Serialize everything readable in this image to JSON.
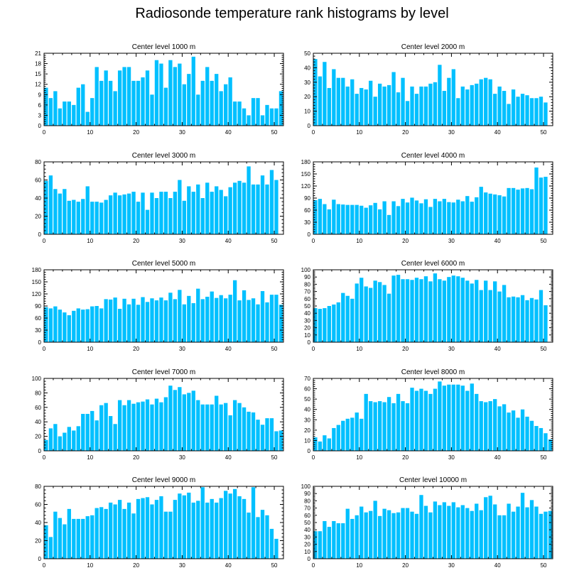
{
  "chart_data": {
    "type": "bar",
    "title": "Radiosonde temperature rank histograms by level",
    "xlim": [
      0,
      52
    ],
    "xticks": [
      0,
      10,
      20,
      30,
      40,
      50
    ],
    "bar_color": "#00c0ff",
    "panels": [
      {
        "title": "Center level 1000 m",
        "ylim": [
          0,
          21
        ],
        "yticks": [
          0,
          3,
          6,
          9,
          12,
          15,
          18,
          21
        ],
        "values": [
          11,
          8,
          10,
          5,
          7,
          7,
          6,
          11,
          12,
          4,
          8,
          17,
          13,
          16,
          13,
          10,
          16,
          17,
          17,
          13,
          13,
          14,
          16,
          9,
          19,
          18,
          11,
          19,
          17,
          18,
          12,
          15,
          20,
          9,
          13,
          17,
          13,
          15,
          10,
          12,
          14,
          7,
          7,
          5,
          3,
          8,
          8,
          3,
          6,
          5,
          5,
          10
        ]
      },
      {
        "title": "Center level 2000 m",
        "ylim": [
          0,
          50
        ],
        "yticks": [
          0,
          10,
          20,
          30,
          40,
          50
        ],
        "values": [
          46,
          34,
          44,
          26,
          39,
          33,
          33,
          27,
          32,
          22,
          26,
          25,
          31,
          20,
          29,
          27,
          28,
          37,
          23,
          33,
          17,
          27,
          22,
          27,
          27,
          29,
          30,
          42,
          24,
          33,
          39,
          19,
          27,
          25,
          28,
          29,
          32,
          33,
          32,
          22,
          27,
          24,
          15,
          25,
          20,
          22,
          21,
          19,
          19,
          20,
          16
        ]
      },
      {
        "title": "Center level 3000 m",
        "ylim": [
          0,
          80
        ],
        "yticks": [
          0,
          20,
          40,
          60,
          80
        ],
        "values": [
          59,
          65,
          50,
          45,
          50,
          37,
          38,
          36,
          39,
          53,
          36,
          36,
          35,
          38,
          43,
          46,
          43,
          44,
          45,
          47,
          36,
          46,
          27,
          46,
          40,
          47,
          47,
          40,
          47,
          60,
          37,
          53,
          47,
          55,
          40,
          57,
          47,
          53,
          49,
          42,
          52,
          57,
          59,
          57,
          75,
          55,
          55,
          65,
          55,
          71,
          60
        ]
      },
      {
        "title": "Center level 4000 m",
        "ylim": [
          0,
          180
        ],
        "yticks": [
          0,
          30,
          60,
          90,
          120,
          150,
          180
        ],
        "values": [
          85,
          88,
          75,
          62,
          86,
          75,
          74,
          73,
          73,
          73,
          71,
          66,
          72,
          78,
          62,
          82,
          48,
          82,
          70,
          88,
          79,
          91,
          84,
          77,
          87,
          68,
          88,
          82,
          88,
          80,
          79,
          86,
          82,
          95,
          81,
          92,
          118,
          104,
          101,
          99,
          97,
          94,
          115,
          115,
          111,
          114,
          115,
          112,
          166,
          141,
          143
        ]
      },
      {
        "title": "Center level 5000 m",
        "ylim": [
          0,
          180
        ],
        "yticks": [
          0,
          30,
          60,
          90,
          120,
          150,
          180
        ],
        "values": [
          87,
          84,
          89,
          81,
          74,
          67,
          78,
          84,
          81,
          82,
          89,
          90,
          84,
          107,
          106,
          111,
          83,
          108,
          94,
          108,
          93,
          112,
          100,
          109,
          104,
          111,
          104,
          123,
          107,
          130,
          94,
          115,
          97,
          133,
          107,
          113,
          126,
          110,
          117,
          109,
          118,
          154,
          104,
          129,
          105,
          109,
          94,
          127,
          99,
          118,
          118,
          93
        ]
      },
      {
        "title": "Center level 6000 m",
        "ylim": [
          0,
          100
        ],
        "yticks": [
          0,
          10,
          20,
          30,
          40,
          50,
          60,
          70,
          80,
          90,
          100
        ],
        "values": [
          47,
          46,
          47,
          50,
          52,
          55,
          68,
          64,
          60,
          81,
          89,
          77,
          75,
          85,
          83,
          79,
          67,
          92,
          93,
          87,
          87,
          86,
          89,
          87,
          91,
          84,
          95,
          87,
          85,
          90,
          92,
          91,
          89,
          85,
          81,
          86,
          72,
          85,
          72,
          84,
          70,
          79,
          62,
          63,
          62,
          65,
          58,
          61,
          59,
          72,
          51
        ]
      },
      {
        "title": "Center level 7000 m",
        "ylim": [
          0,
          100
        ],
        "yticks": [
          0,
          20,
          40,
          60,
          80,
          100
        ],
        "values": [
          15,
          31,
          37,
          20,
          25,
          33,
          28,
          34,
          51,
          51,
          55,
          42,
          63,
          66,
          48,
          37,
          70,
          63,
          70,
          65,
          67,
          68,
          71,
          64,
          72,
          67,
          74,
          90,
          84,
          88,
          78,
          80,
          83,
          70,
          64,
          64,
          64,
          76,
          64,
          66,
          49,
          70,
          66,
          60,
          54,
          53,
          43,
          36,
          45,
          45,
          27,
          28
        ]
      },
      {
        "title": "Center level 8000 m",
        "ylim": [
          0,
          70
        ],
        "yticks": [
          0,
          10,
          20,
          30,
          40,
          50,
          60,
          70
        ],
        "values": [
          13,
          9,
          15,
          12,
          22,
          25,
          29,
          31,
          32,
          37,
          31,
          55,
          48,
          47,
          48,
          47,
          52,
          46,
          55,
          48,
          46,
          61,
          58,
          60,
          58,
          55,
          60,
          67,
          63,
          64,
          64,
          64,
          63,
          58,
          65,
          55,
          48,
          47,
          48,
          50,
          43,
          45,
          37,
          39,
          32,
          40,
          33,
          29,
          24,
          22,
          17,
          11
        ]
      },
      {
        "title": "Center level 9000 m",
        "ylim": [
          0,
          80
        ],
        "yticks": [
          0,
          20,
          40,
          60,
          80
        ],
        "values": [
          37,
          24,
          52,
          45,
          38,
          55,
          44,
          44,
          44,
          47,
          48,
          56,
          57,
          55,
          62,
          60,
          65,
          55,
          62,
          50,
          66,
          67,
          68,
          60,
          65,
          69,
          52,
          52,
          65,
          72,
          70,
          73,
          62,
          64,
          79,
          62,
          66,
          62,
          67,
          75,
          72,
          77,
          69,
          66,
          51,
          79,
          46,
          54,
          48,
          33,
          22
        ]
      },
      {
        "title": "Center level 10000 m",
        "ylim": [
          0,
          100
        ],
        "yticks": [
          0,
          10,
          20,
          30,
          40,
          50,
          60,
          70,
          80,
          90,
          100
        ],
        "values": [
          38,
          38,
          52,
          44,
          52,
          49,
          49,
          69,
          55,
          60,
          72,
          64,
          66,
          80,
          59,
          69,
          67,
          63,
          64,
          70,
          70,
          65,
          62,
          88,
          73,
          64,
          79,
          74,
          78,
          73,
          78,
          71,
          74,
          70,
          66,
          76,
          67,
          85,
          87,
          75,
          60,
          60,
          76,
          65,
          72,
          91,
          71,
          81,
          72,
          62,
          65,
          66
        ]
      }
    ]
  }
}
